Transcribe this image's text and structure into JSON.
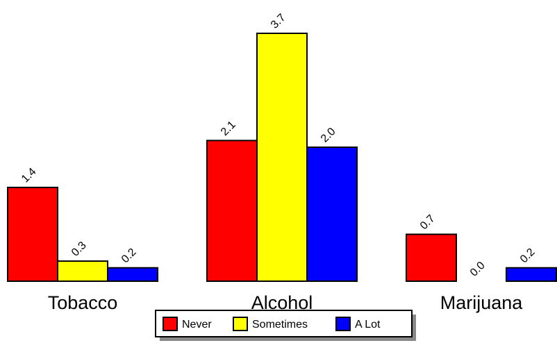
{
  "chart_data": {
    "type": "bar",
    "title": "",
    "xlabel": "",
    "ylabel": "",
    "categories": [
      "Tobacco",
      "Alcohol",
      "Marijuana"
    ],
    "series": [
      {
        "name": "Never",
        "values": [
          1.4,
          2.1,
          0.7
        ],
        "color": "#ff0000"
      },
      {
        "name": "Sometimes",
        "values": [
          0.3,
          3.7,
          0.0
        ],
        "color": "#ffff00"
      },
      {
        "name": "A Lot",
        "values": [
          0.2,
          2.0,
          0.2
        ],
        "color": "#0000ff"
      }
    ],
    "value_labels": [
      [
        "1.4",
        "2.1",
        "0.7"
      ],
      [
        "0.3",
        "3.7",
        "0.0"
      ],
      [
        "0.2",
        "2.0",
        "0.2"
      ]
    ],
    "ylim": [
      0,
      3.7
    ],
    "grid": false,
    "legend": {
      "position": "bottom-center",
      "items": [
        "Never",
        "Sometimes",
        "A Lot"
      ]
    }
  }
}
